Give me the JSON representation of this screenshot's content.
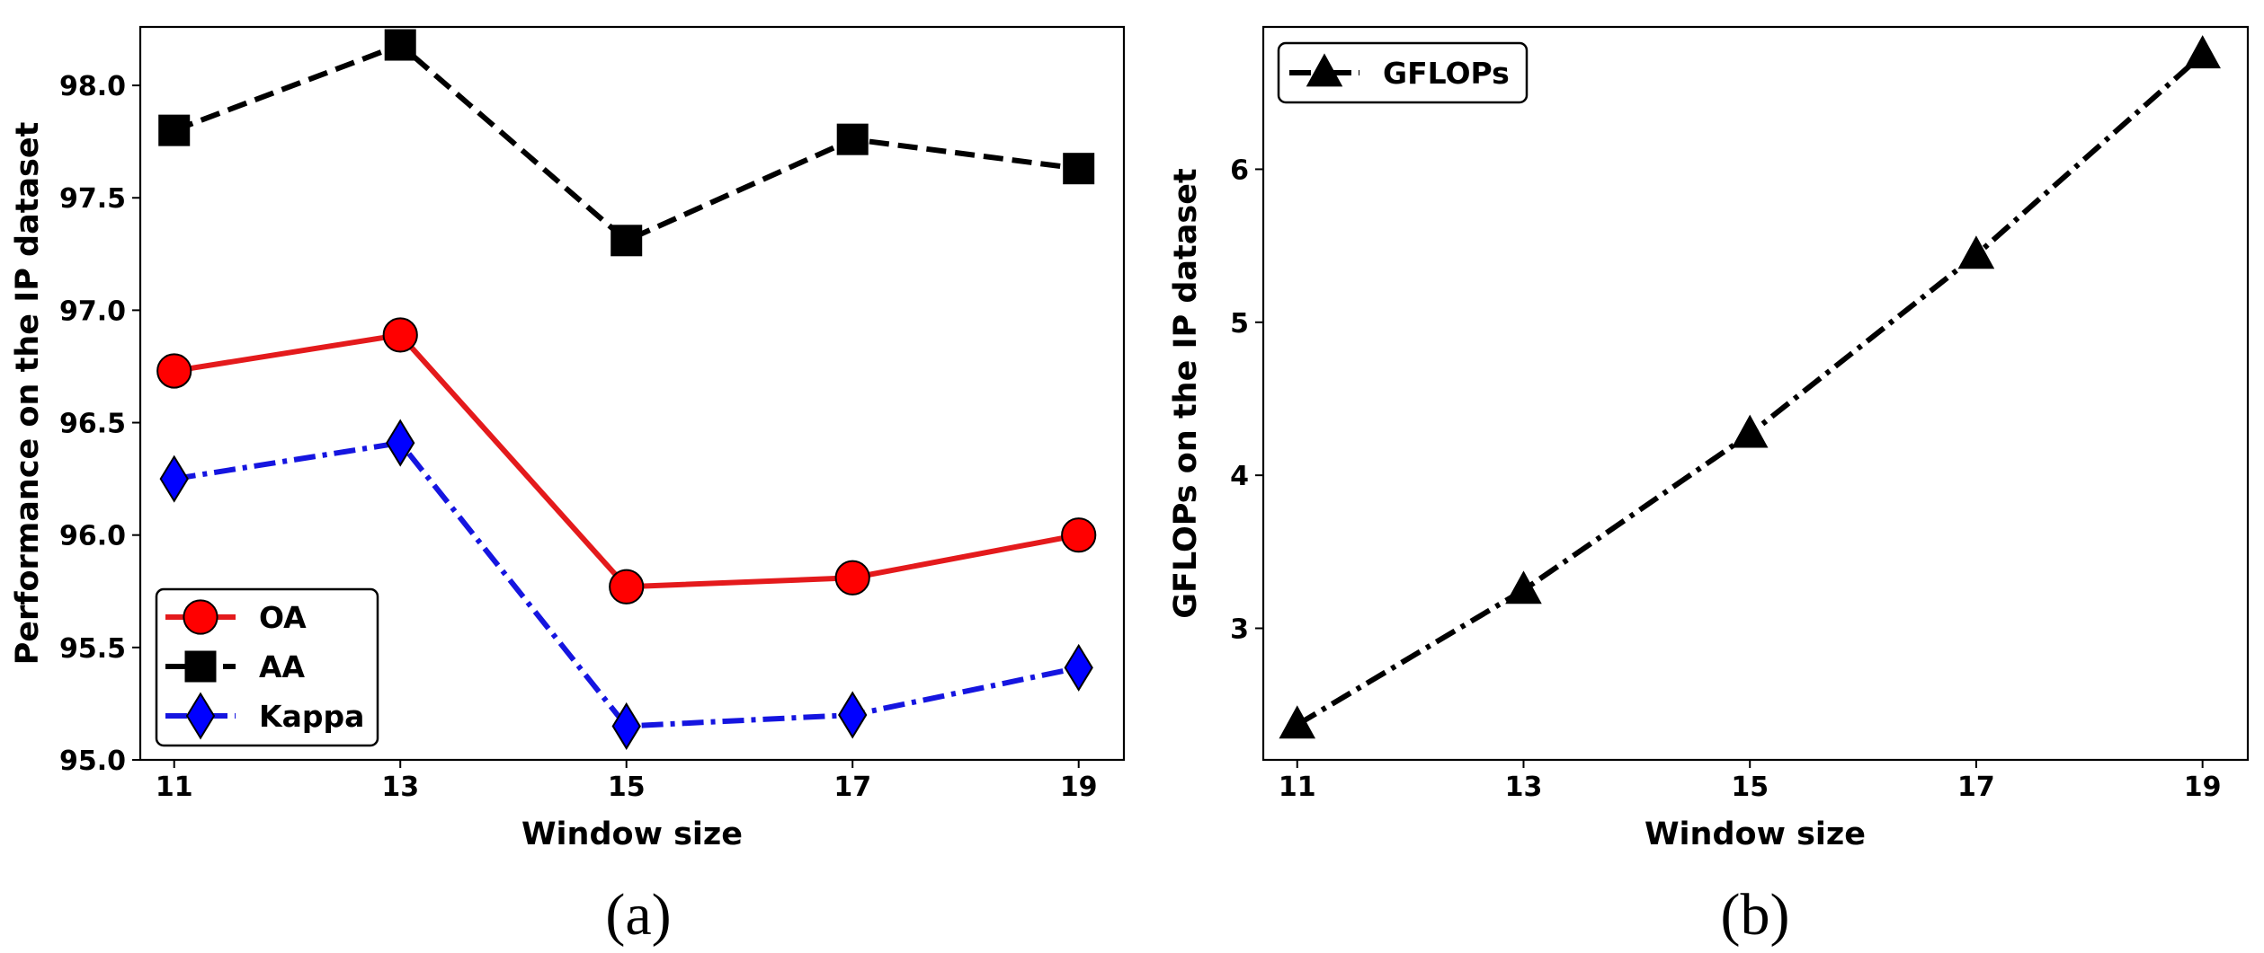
{
  "chart_data": [
    {
      "type": "line",
      "panel_label": "(a)",
      "x": [
        11,
        13,
        15,
        17,
        19
      ],
      "xticks": [
        "11",
        "13",
        "15",
        "17",
        "19"
      ],
      "xlabel": "Window size",
      "ylabel": "Performance on the IP dataset",
      "yticks": [
        "95.0",
        "95.5",
        "96.0",
        "96.5",
        "97.0",
        "97.5",
        "98.0"
      ],
      "ylim": [
        95.0,
        98.26
      ],
      "xlim": [
        10.7,
        19.4
      ],
      "legend_loc": "lower-left",
      "series": [
        {
          "name": "OA",
          "values": [
            96.73,
            96.89,
            95.77,
            95.81,
            96.0
          ],
          "color": "#e41a1c",
          "linestyle": "solid",
          "marker": "circle",
          "marker_fill": "#ff0000"
        },
        {
          "name": "AA",
          "values": [
            97.8,
            98.18,
            97.31,
            97.76,
            97.63
          ],
          "color": "#000000",
          "linestyle": "dashed",
          "marker": "square",
          "marker_fill": "#000000"
        },
        {
          "name": "Kappa",
          "values": [
            96.25,
            96.41,
            95.15,
            95.2,
            95.41
          ],
          "color": "#1515e0",
          "linestyle": "dashdot",
          "marker": "diamond",
          "marker_fill": "#0000ff"
        }
      ]
    },
    {
      "type": "line",
      "panel_label": "(b)",
      "x": [
        11,
        13,
        15,
        17,
        19
      ],
      "xticks": [
        "11",
        "13",
        "15",
        "17",
        "19"
      ],
      "xlabel": "Window size",
      "ylabel": "GFLOPs on the IP dataset",
      "yticks": [
        "3",
        "4",
        "5",
        "6"
      ],
      "ytick_values": [
        3,
        4,
        5,
        6
      ],
      "ylim": [
        2.14,
        6.93
      ],
      "xlim": [
        10.7,
        19.4
      ],
      "legend_loc": "top-left",
      "series": [
        {
          "name": "GFLOPs",
          "values": [
            2.37,
            3.25,
            4.27,
            5.44,
            6.75
          ],
          "color": "#000000",
          "linestyle": "dashdot",
          "marker": "triangle",
          "marker_fill": "#000000"
        }
      ]
    }
  ]
}
